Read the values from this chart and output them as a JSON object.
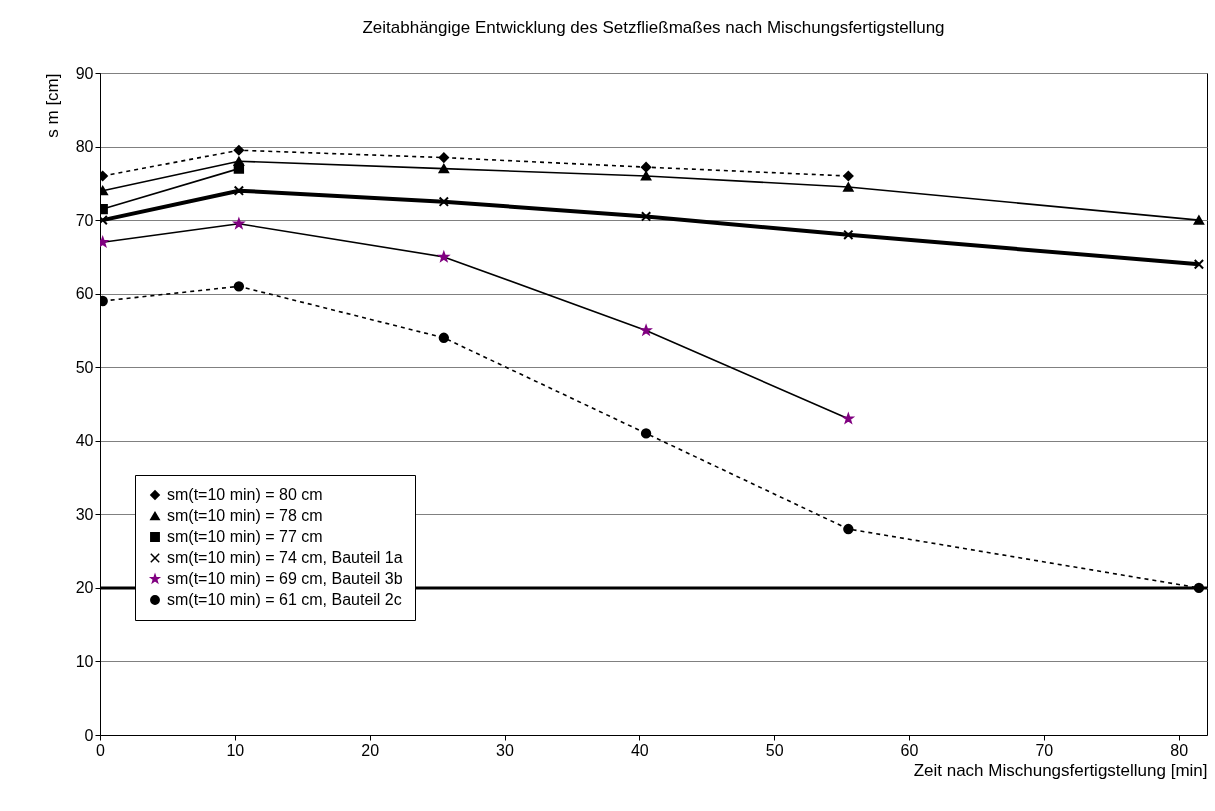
{
  "chart_data": {
    "type": "line",
    "title": "Zeitabhängige Entwicklung des Setzfließmaßes nach Mischungsfertigstellung",
    "xlabel": "Zeit nach Mischungsfertigstellung [min]",
    "ylabel": "s m [cm]",
    "xlim": [
      0,
      82.1
    ],
    "xticks": [
      0,
      10,
      20,
      30,
      40,
      50,
      60,
      70,
      80
    ],
    "ylim": [
      0,
      90
    ],
    "yticks": [
      0,
      10,
      20,
      30,
      40,
      50,
      60,
      70,
      80,
      90
    ],
    "grid": "y",
    "legend": "bottom left",
    "series": [
      {
        "name": "sm(t=10 min) = 80 cm",
        "color": "#000000",
        "marker": "diamond",
        "line_style": "dashed",
        "x": [
          0.2,
          10.3,
          25.5,
          40.5,
          55.5
        ],
        "values": [
          76,
          79.5,
          78.5,
          77.2,
          76
        ]
      },
      {
        "name": "sm(t=10 min) = 78 cm",
        "color": "#000000",
        "marker": "triangle",
        "line_style": "solid",
        "x": [
          0.2,
          10.3,
          25.5,
          40.5,
          55.5,
          81.5
        ],
        "values": [
          74,
          78,
          77,
          76,
          74.5,
          70
        ]
      },
      {
        "name": "sm(t=10 min) = 77 cm",
        "color": "#000000",
        "marker": "square",
        "line_style": "solid",
        "x": [
          0.2,
          10.3
        ],
        "values": [
          71.5,
          77
        ]
      },
      {
        "name": "sm(t=10 min) = 74 cm, Bauteil 1a",
        "color": "#000000",
        "marker": "cross",
        "line_style": "solid",
        "x": [
          0.2,
          10.3,
          25.5,
          40.5,
          55.5,
          81.5
        ],
        "values": [
          70,
          74,
          72.5,
          70.5,
          68,
          64
        ]
      },
      {
        "name": "sm(t=10 min) = 69 cm, Bauteil 3b",
        "color": "#800080",
        "marker": "star",
        "line_style": "solid",
        "x": [
          0.2,
          10.3,
          25.5,
          40.5,
          55.5
        ],
        "values": [
          67,
          69.5,
          65,
          55,
          43
        ]
      },
      {
        "name": "sm(t=10 min) = 61 cm, Bauteil 2c",
        "color": "#000000",
        "marker": "circle",
        "line_style": "dashed",
        "x": [
          0.2,
          10.3,
          25.5,
          40.5,
          55.5,
          81.5
        ],
        "values": [
          59,
          61,
          54,
          41,
          28,
          20
        ]
      }
    ],
    "ref_lines": [
      {
        "axis": "y",
        "value": 20,
        "color": "#000000"
      }
    ]
  }
}
